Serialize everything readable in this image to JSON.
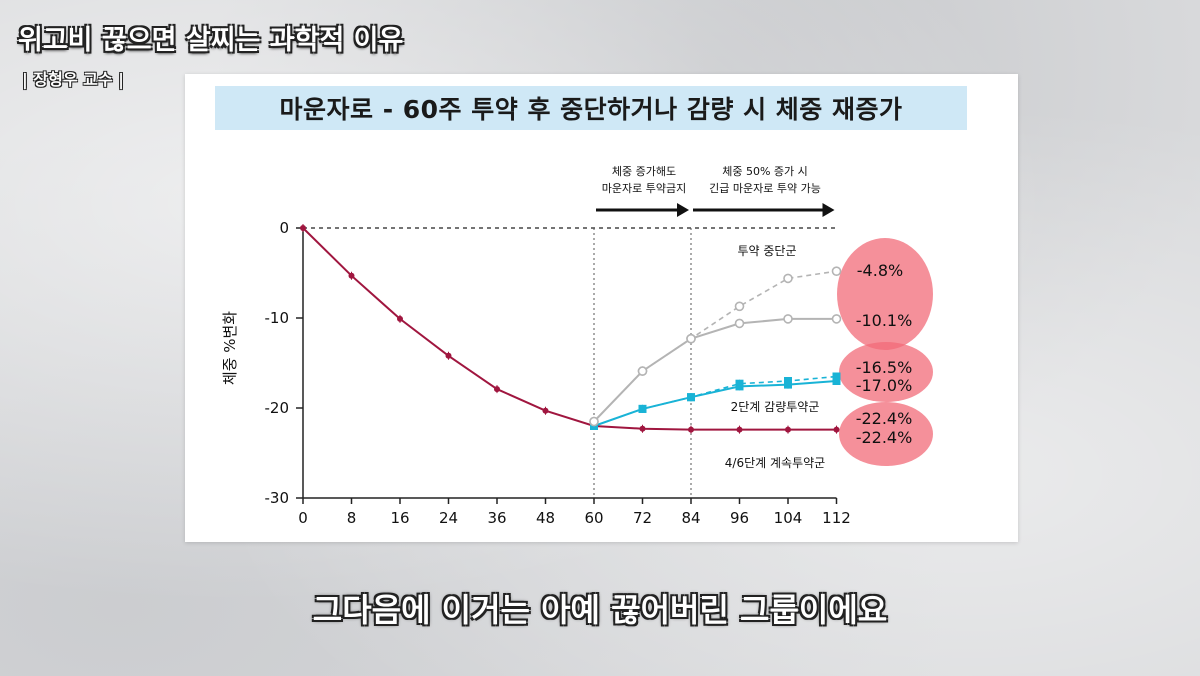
{
  "video": {
    "title": "위고비 끊으면 살찌는 과학적 이유",
    "subtitle": "| 장형우 교수 |",
    "caption": "그다음에 이거는 아예 끊어버린 그룹이에요"
  },
  "colors": {
    "background": "#d9dadc",
    "slide_title_bg": "#cfe8f6",
    "continued": "#a0163f",
    "reduced": "#19b3d6",
    "stopped": "#b4b4b4",
    "highlight": "#f26b78"
  },
  "chart_data": {
    "type": "line",
    "title": "마운자로 - 60주 투약 후 중단하거나 감량 시 체중 재증가",
    "ylabel": "체중 %변화",
    "xlabel": "",
    "ylim": [
      -30,
      0
    ],
    "yticks": [
      "0",
      "-10",
      "-20",
      "-30"
    ],
    "yticks_values": [
      0,
      -10,
      -20,
      -30
    ],
    "x_ticks": [
      0,
      8,
      16,
      24,
      36,
      48,
      60,
      72,
      84,
      96,
      104,
      112
    ],
    "x_tick_labels": [
      "0",
      "8",
      "16",
      "24",
      "36",
      "48",
      "60",
      "72",
      "84",
      "96",
      "104",
      "112"
    ],
    "zero_reference_line": true,
    "vertical_markers": [
      60,
      84
    ],
    "annotations": [
      {
        "text_lines": [
          "체중 증가해도",
          "마운자로 투약금지"
        ],
        "x_from": 60,
        "x_to": 84
      },
      {
        "text_lines": [
          "체중 50% 증가 시",
          "긴급 마운자로 투약 가능"
        ],
        "x_from": 84,
        "x_to": 112
      }
    ],
    "series": [
      {
        "name": "4/6단계 계속투약군",
        "color": "#a0163f",
        "style": "solid",
        "x": [
          0,
          8,
          16,
          24,
          36,
          48,
          60,
          72,
          84,
          96,
          104,
          112
        ],
        "y": [
          0,
          -5.3,
          -10.1,
          -14.2,
          -17.9,
          -20.3,
          -22.0,
          -22.3,
          -22.4,
          -22.4,
          -22.4,
          -22.4
        ]
      },
      {
        "name": "2단계 감량투약군",
        "color": "#19b3d6",
        "style": "solid",
        "x": [
          60,
          72,
          84,
          96,
          104,
          112
        ],
        "y": [
          -22.0,
          -20.1,
          -18.8,
          -17.6,
          -17.4,
          -17.0
        ]
      },
      {
        "name": "2단계 감량투약군 (dashed)",
        "color": "#19b3d6",
        "style": "dashed",
        "x": [
          60,
          72,
          84,
          96,
          104,
          112
        ],
        "y": [
          -22.0,
          -20.1,
          -18.8,
          -17.3,
          -17.0,
          -16.5
        ]
      },
      {
        "name": "투약 중단군",
        "color": "#b4b4b4",
        "style": "solid",
        "x": [
          60,
          72,
          84,
          96,
          104,
          112
        ],
        "y": [
          -21.5,
          -15.9,
          -12.3,
          -10.6,
          -10.1,
          -10.1
        ]
      },
      {
        "name": "투약 중단군 (dashed)",
        "color": "#b4b4b4",
        "style": "dashed",
        "x": [
          60,
          72,
          84,
          96,
          104,
          112
        ],
        "y": [
          -21.5,
          -15.9,
          -12.3,
          -8.7,
          -5.6,
          -4.8
        ]
      }
    ],
    "group_labels": [
      "투약 중단군",
      "2단계 감량투약군",
      "4/6단계 계속투약군"
    ],
    "end_labels": [
      "-4.8%",
      "-10.1%",
      "-16.5%",
      "-17.0%",
      "-22.4%",
      "-22.4%"
    ]
  }
}
